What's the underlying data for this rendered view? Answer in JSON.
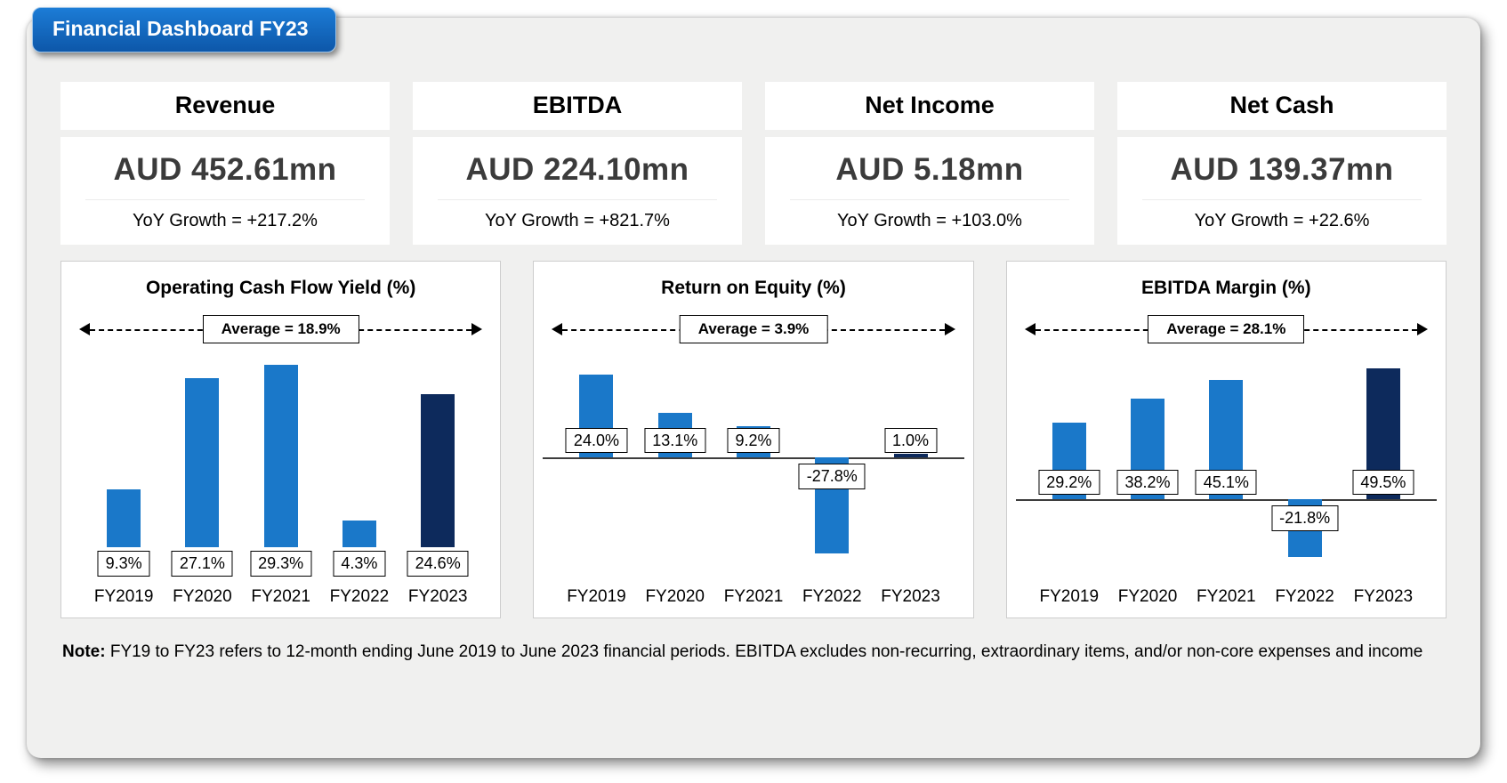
{
  "title": "Financial Dashboard FY23",
  "kpis": [
    {
      "label": "Revenue",
      "value": "AUD 452.61mn",
      "growth": "YoY Growth = +217.2%"
    },
    {
      "label": "EBITDA",
      "value": "AUD 224.10mn",
      "growth": "YoY Growth = +821.7%"
    },
    {
      "label": "Net Income",
      "value": "AUD 5.18mn",
      "growth": "YoY Growth = +103.0%"
    },
    {
      "label": "Net Cash",
      "value": "AUD 139.37mn",
      "growth": "YoY Growth = +22.6%"
    }
  ],
  "chart_data": [
    {
      "type": "bar",
      "title": "Operating Cash Flow Yield (%)",
      "average": 18.9,
      "average_label": "Average = 18.9%",
      "categories": [
        "FY2019",
        "FY2020",
        "FY2021",
        "FY2022",
        "FY2023"
      ],
      "values": [
        9.3,
        27.1,
        29.3,
        4.3,
        24.6
      ],
      "value_labels": [
        "9.3%",
        "27.1%",
        "29.3%",
        "4.3%",
        "24.6%"
      ],
      "xlabel": "",
      "ylabel": "",
      "ylim": [
        -5,
        31
      ],
      "show_axis_line": false,
      "label_placement": "below_axis_all",
      "bar_colors": [
        "#1a78c9",
        "#1a78c9",
        "#1a78c9",
        "#1a78c9",
        "#0d2a5c"
      ]
    },
    {
      "type": "bar",
      "title": "Return on Equity (%)",
      "average": 3.9,
      "average_label": "Average = 3.9%",
      "categories": [
        "FY2019",
        "FY2020",
        "FY2021",
        "FY2022",
        "FY2023"
      ],
      "values": [
        24.0,
        13.1,
        9.2,
        -27.8,
        1.0
      ],
      "value_labels": [
        "24.0%",
        "13.1%",
        "9.2%",
        "-27.8%",
        "1.0%"
      ],
      "xlabel": "",
      "ylabel": "",
      "ylim": [
        -35,
        30
      ],
      "show_axis_line": true,
      "label_placement": "axis_adjacent",
      "bar_colors": [
        "#1a78c9",
        "#1a78c9",
        "#1a78c9",
        "#1a78c9",
        "#0d2a5c"
      ]
    },
    {
      "type": "bar",
      "title": "EBITDA Margin (%)",
      "average": 28.1,
      "average_label": "Average = 28.1%",
      "categories": [
        "FY2019",
        "FY2020",
        "FY2021",
        "FY2022",
        "FY2023"
      ],
      "values": [
        29.2,
        38.2,
        45.1,
        -21.8,
        49.5
      ],
      "value_labels": [
        "29.2%",
        "38.2%",
        "45.1%",
        "-21.8%",
        "49.5%"
      ],
      "xlabel": "",
      "ylabel": "",
      "ylim": [
        -30,
        55
      ],
      "show_axis_line": true,
      "label_placement": "axis_adjacent",
      "bar_colors": [
        "#1a78c9",
        "#1a78c9",
        "#1a78c9",
        "#1a78c9",
        "#0d2a5c"
      ]
    }
  ],
  "note": {
    "label": "Note:",
    "text": " FY19 to FY23 refers to 12-month ending June 2019 to June 2023 financial periods. EBITDA excludes non-recurring, extraordinary items, and/or non-core expenses and income"
  },
  "colors": {
    "bar_primary": "#1a78c9",
    "bar_fy2023": "#0d2a5c",
    "banner_blue": "#0f5ab0",
    "panel_background": "#f0f0ef"
  }
}
